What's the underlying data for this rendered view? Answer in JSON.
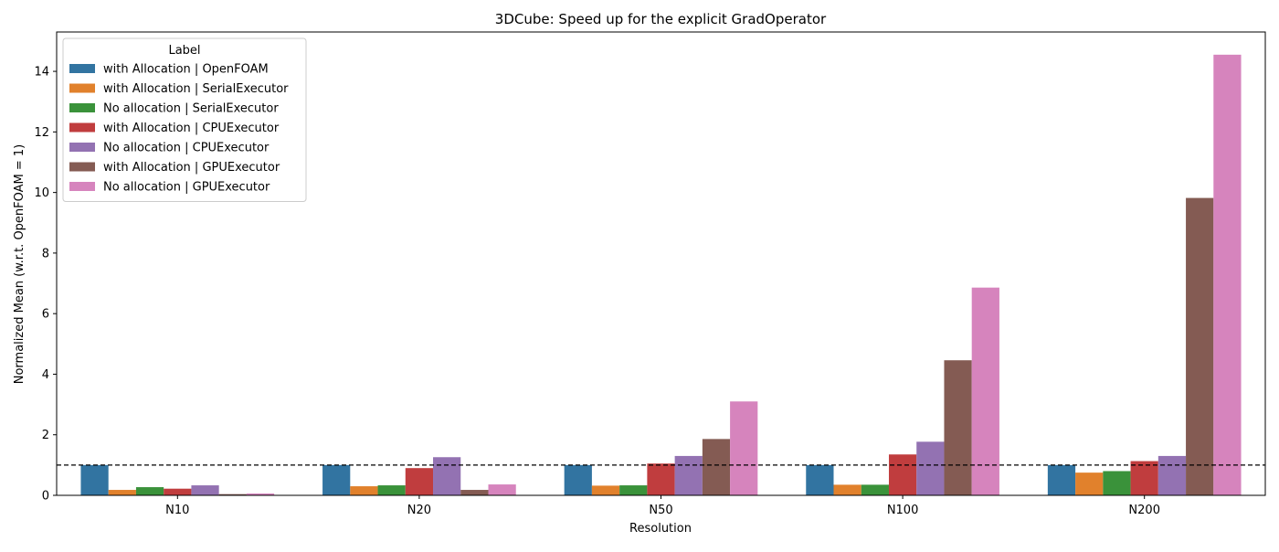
{
  "chart_data": {
    "type": "bar",
    "title": "3DCube: Speed up for the explicit GradOperator",
    "xlabel": "Resolution",
    "ylabel": "Normalized Mean (w.r.t. OpenFOAM = 1)",
    "ylim": [
      0,
      15.3
    ],
    "yticks": [
      0,
      2,
      4,
      6,
      8,
      10,
      12,
      14
    ],
    "categories": [
      "N10",
      "N20",
      "N50",
      "N100",
      "N200"
    ],
    "reference_line": 1,
    "legend": {
      "title": "Label",
      "placement": "top-left"
    },
    "grid": false,
    "series": [
      {
        "name": "with Allocation | OpenFOAM",
        "color": "#3274a1",
        "values": [
          1.0,
          1.0,
          1.0,
          1.0,
          1.0
        ]
      },
      {
        "name": "with Allocation | SerialExecutor",
        "color": "#e1812c",
        "values": [
          0.18,
          0.3,
          0.32,
          0.35,
          0.75
        ]
      },
      {
        "name": "No allocation | SerialExecutor",
        "color": "#3a923a",
        "values": [
          0.27,
          0.33,
          0.33,
          0.35,
          0.8
        ]
      },
      {
        "name": "with Allocation | CPUExecutor",
        "color": "#c03d3e",
        "values": [
          0.22,
          0.9,
          1.05,
          1.35,
          1.13
        ]
      },
      {
        "name": "No allocation | CPUExecutor",
        "color": "#9372b2",
        "values": [
          0.33,
          1.26,
          1.3,
          1.77,
          1.3
        ]
      },
      {
        "name": "with Allocation | GPUExecutor",
        "color": "#845b53",
        "values": [
          0.04,
          0.18,
          1.86,
          4.46,
          9.82
        ]
      },
      {
        "name": "No allocation | GPUExecutor",
        "color": "#d684bd",
        "values": [
          0.06,
          0.36,
          3.1,
          6.86,
          14.55
        ]
      }
    ]
  }
}
